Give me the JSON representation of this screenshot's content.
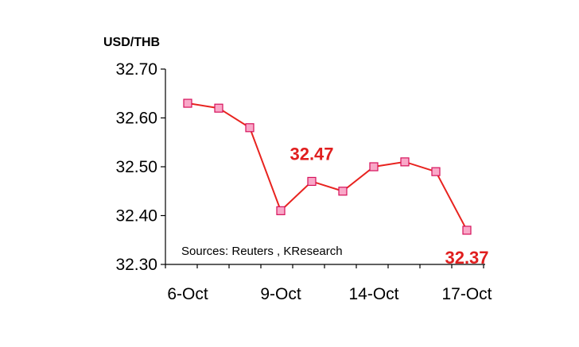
{
  "chart_data": {
    "type": "line",
    "title": "",
    "unit_label": "USD/THB",
    "xlabel": "",
    "ylabel": "",
    "ylim": [
      32.3,
      32.7
    ],
    "y_ticks": [
      32.3,
      32.4,
      32.5,
      32.6,
      32.7
    ],
    "y_tick_labels": [
      "32.30",
      "32.40",
      "32.50",
      "32.60",
      "32.70"
    ],
    "x_tick_labels": [
      "6-Oct",
      "9-Oct",
      "14-Oct",
      "17-Oct"
    ],
    "grid": false,
    "series": [
      {
        "name": "USD/THB",
        "color": "#e8231f",
        "marker_fill": "#f9a8c8",
        "marker_stroke": "#d6105a",
        "values": [
          32.63,
          32.62,
          32.58,
          32.41,
          32.47,
          32.45,
          32.5,
          32.51,
          32.49,
          32.37
        ]
      }
    ],
    "annotations": [
      {
        "text": "32.47",
        "point_index": 4
      },
      {
        "text": "32.37",
        "point_index": 9
      }
    ],
    "source_note": "Sources: Reuters , KResearch"
  }
}
